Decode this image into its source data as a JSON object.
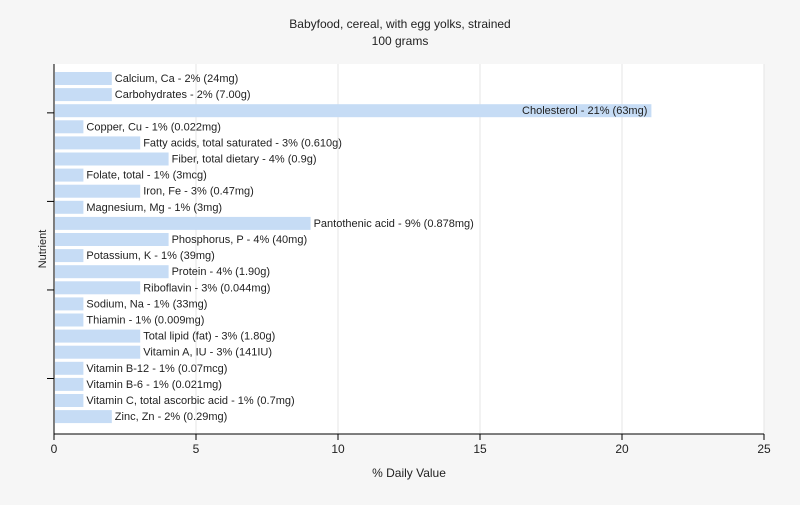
{
  "chart_data": {
    "type": "bar",
    "orientation": "horizontal",
    "title": "Babyfood, cereal, with egg yolks, strained",
    "subtitle": "100 grams",
    "xlabel": "% Daily Value",
    "ylabel": "Nutrient",
    "xlim": [
      0,
      25
    ],
    "xticks": [
      0,
      5,
      10,
      15,
      20,
      25
    ],
    "grid": true,
    "bar_color": "#c6dcf5",
    "categories": [
      "Calcium, Ca",
      "Carbohydrates",
      "Cholesterol",
      "Copper, Cu",
      "Fatty acids, total saturated",
      "Fiber, total dietary",
      "Folate, total",
      "Iron, Fe",
      "Magnesium, Mg",
      "Pantothenic acid",
      "Phosphorus, P",
      "Potassium, K",
      "Protein",
      "Riboflavin",
      "Sodium, Na",
      "Thiamin",
      "Total lipid (fat)",
      "Vitamin A, IU",
      "Vitamin B-12",
      "Vitamin B-6",
      "Vitamin C, total ascorbic acid",
      "Zinc, Zn"
    ],
    "values": [
      2,
      2,
      21,
      1,
      3,
      4,
      1,
      3,
      1,
      9,
      4,
      1,
      4,
      3,
      1,
      1,
      3,
      3,
      1,
      1,
      1,
      2
    ],
    "labels": [
      "Calcium, Ca - 2% (24mg)",
      "Carbohydrates - 2% (7.00g)",
      "Cholesterol - 21% (63mg)",
      "Copper, Cu - 1% (0.022mg)",
      "Fatty acids, total saturated - 3% (0.610g)",
      "Fiber, total dietary - 4% (0.9g)",
      "Folate, total - 1% (3mcg)",
      "Iron, Fe - 3% (0.47mg)",
      "Magnesium, Mg - 1% (3mg)",
      "Pantothenic acid - 9% (0.878mg)",
      "Phosphorus, P - 4% (40mg)",
      "Potassium, K - 1% (39mg)",
      "Protein - 4% (1.90g)",
      "Riboflavin - 3% (0.044mg)",
      "Sodium, Na - 1% (33mg)",
      "Thiamin - 1% (0.009mg)",
      "Total lipid (fat) - 3% (1.80g)",
      "Vitamin A, IU - 3% (141IU)",
      "Vitamin B-12 - 1% (0.07mcg)",
      "Vitamin B-6 - 1% (0.021mg)",
      "Vitamin C, total ascorbic acid - 1% (0.7mg)",
      "Zinc, Zn - 2% (0.29mg)"
    ]
  }
}
